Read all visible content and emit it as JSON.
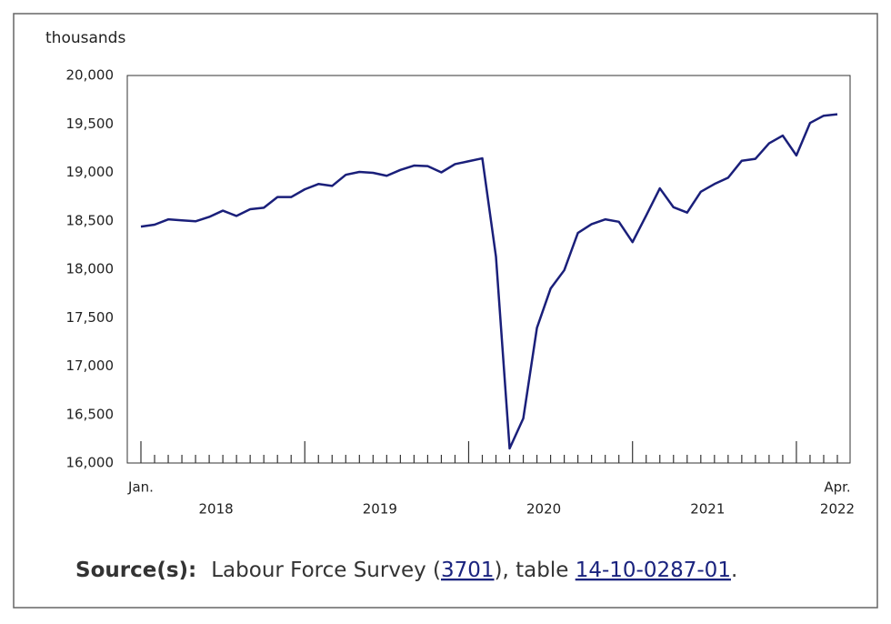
{
  "chart_data": {
    "type": "line",
    "y_axis_label": "thousands",
    "categories": [
      "Jan.",
      null,
      null,
      null,
      null,
      null,
      null,
      null,
      null,
      null,
      null,
      null,
      null,
      null,
      null,
      null,
      null,
      null,
      null,
      null,
      null,
      null,
      null,
      null,
      null,
      null,
      null,
      null,
      null,
      null,
      null,
      null,
      null,
      null,
      null,
      null,
      null,
      null,
      null,
      null,
      null,
      null,
      null,
      null,
      null,
      null,
      null,
      null,
      null,
      null,
      null,
      "Apr."
    ],
    "year_labels": [
      "2018",
      "2019",
      "2020",
      "2021",
      "2022"
    ],
    "series": [
      {
        "color": "#1a1f7a",
        "values": [
          18440,
          18460,
          18515,
          18505,
          18495,
          18540,
          18605,
          18550,
          18620,
          18635,
          18745,
          18745,
          18825,
          18880,
          18860,
          18975,
          19005,
          18995,
          18965,
          19025,
          19070,
          19065,
          19000,
          19085,
          19115,
          19145,
          18130,
          16150,
          16460,
          17395,
          17800,
          17990,
          18375,
          18465,
          18515,
          18490,
          18280,
          18555,
          18835,
          18640,
          18585,
          18800,
          18880,
          18945,
          19120,
          19140,
          19300,
          19380,
          19175,
          19510,
          19585,
          19600
        ]
      }
    ],
    "ylim": [
      16000,
      20000
    ],
    "yticks": [
      {
        "value": 16000,
        "label": "16,000"
      },
      {
        "value": 16500,
        "label": "16,500"
      },
      {
        "value": 17000,
        "label": "17,000"
      },
      {
        "value": 17500,
        "label": "17,500"
      },
      {
        "value": 18000,
        "label": "18,000"
      },
      {
        "value": 18500,
        "label": "18,500"
      },
      {
        "value": 19000,
        "label": "19,000"
      },
      {
        "value": 19500,
        "label": "19,500"
      },
      {
        "value": 20000,
        "label": "20,000"
      }
    ],
    "grid": false
  },
  "source": {
    "label": "Source(s):",
    "prefix": "Labour Force Survey (",
    "survey_link": "3701",
    "middle": "), table ",
    "table_link": "14-10-0287-01",
    "suffix": "."
  }
}
